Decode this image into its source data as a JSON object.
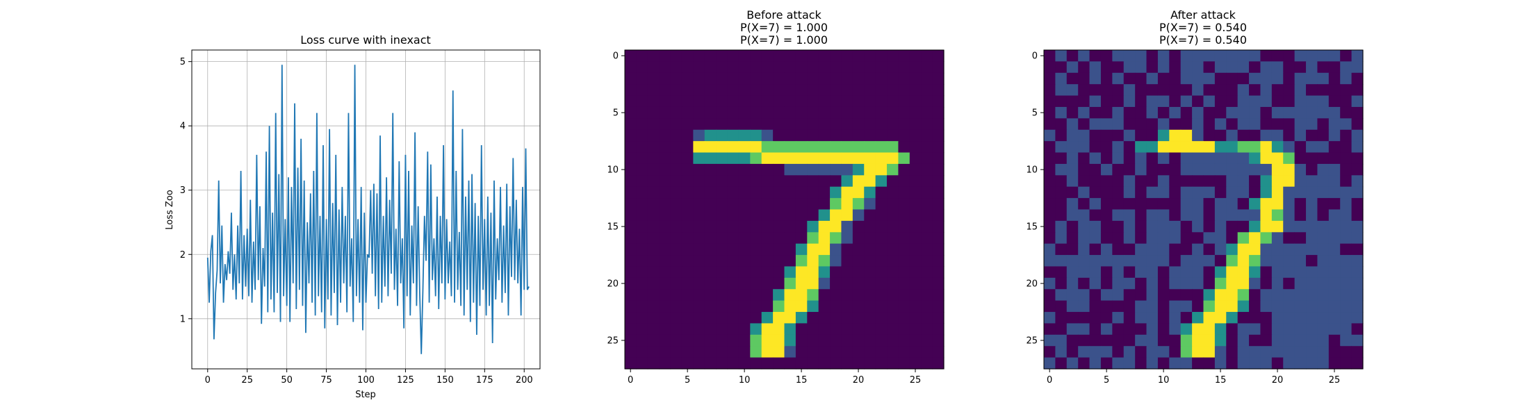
{
  "chart_data": [
    {
      "type": "line",
      "title": "Loss curve with inexact",
      "xlabel": "Step",
      "ylabel": "Loss Zoo",
      "xlim": [
        -10,
        210
      ],
      "ylim": [
        0.22,
        5.18
      ],
      "xticks": [
        0,
        25,
        50,
        75,
        100,
        125,
        150,
        175,
        200
      ],
      "yticks": [
        1,
        2,
        3,
        4,
        5
      ],
      "grid": true,
      "line_color": "#1f77b4",
      "series": [
        {
          "values": [
            1.95,
            1.25,
            2.05,
            2.3,
            0.68,
            1.4,
            1.75,
            3.15,
            1.55,
            2.45,
            1.25,
            1.85,
            1.6,
            2.05,
            1.7,
            2.65,
            1.45,
            2.0,
            1.3,
            2.45,
            1.55,
            3.3,
            1.3,
            2.3,
            1.5,
            2.4,
            1.35,
            2.85,
            1.25,
            2.2,
            1.45,
            3.55,
            1.6,
            2.75,
            0.92,
            2.1,
            1.5,
            3.6,
            1.1,
            4.0,
            1.3,
            2.65,
            1.1,
            4.2,
            1.4,
            3.25,
            0.95,
            4.95,
            1.35,
            2.55,
            1.2,
            3.2,
            0.95,
            3.05,
            1.55,
            4.35,
            1.15,
            3.35,
            1.45,
            3.8,
            1.2,
            3.15,
            0.78,
            2.5,
            1.55,
            2.95,
            1.25,
            3.3,
            1.05,
            4.2,
            1.35,
            2.6,
            1.1,
            3.7,
            0.85,
            2.55,
            1.3,
            3.95,
            1.05,
            2.8,
            1.4,
            3.55,
            0.9,
            2.7,
            1.25,
            3.05,
            1.55,
            2.6,
            1.1,
            4.2,
            1.5,
            2.25,
            0.95,
            4.95,
            1.35,
            2.55,
            1.25,
            3.05,
            0.82,
            2.65,
            1.25,
            2.0,
            1.95,
            3.0,
            1.7,
            3.1,
            1.35,
            2.95,
            1.15,
            3.85,
            1.25,
            2.6,
            1.5,
            3.2,
            1.35,
            2.85,
            1.7,
            4.2,
            1.45,
            2.4,
            1.2,
            3.45,
            1.55,
            2.25,
            0.85,
            3.55,
            1.35,
            3.3,
            1.05,
            2.45,
            1.55,
            3.9,
            1.2,
            2.75,
            1.4,
            0.45,
            1.45,
            2.6,
            1.9,
            3.6,
            1.25,
            3.4,
            1.6,
            2.25,
            1.35,
            2.9,
            1.15,
            2.6,
            1.55,
            3.7,
            1.3,
            2.55,
            1.55,
            2.2,
            1.35,
            4.55,
            1.25,
            3.3,
            1.45,
            2.35,
            1.2,
            3.95,
            1.05,
            2.9,
            1.45,
            3.15,
            0.95,
            3.25,
            1.25,
            2.8,
            0.75,
            2.6,
            1.2,
            3.7,
            1.45,
            2.55,
            1.05,
            2.9,
            1.2,
            2.65,
            0.62,
            3.15,
            1.3,
            2.25,
            1.6,
            3.05,
            1.25,
            2.45,
            1.4,
            3.1,
            1.05,
            2.75,
            1.65,
            3.5,
            1.6,
            2.85,
            1.55,
            2.4,
            1.05,
            3.05,
            1.45,
            3.65,
            1.45,
            1.5
          ]
        }
      ]
    },
    {
      "type": "heatmap",
      "title_lines": [
        "Before attack",
        "P(X=7) = 1.000",
        "P(X=7) = 1.000"
      ],
      "size": 28,
      "xticks": [
        0,
        5,
        10,
        15,
        20,
        25
      ],
      "yticks": [
        0,
        5,
        10,
        15,
        20,
        25
      ],
      "colormap": [
        "#440154",
        "#3b528b",
        "#21918c",
        "#5ec962",
        "#fde725"
      ],
      "values": [
        "............................",
        "............................",
        "............................",
        "............................",
        "............................",
        "............................",
        "............................",
        "......1222221...............",
        "......444444333333333333....",
        "......2222234444444444443...",
        "..............1111112443....",
        "...................2442.....",
        "..................2442......",
        "..................3431......",
        ".................2441.......",
        "................2441........",
        "................3431........",
        "...............2441.........",
        "...............3431.........",
        "..............2442..........",
        "..............3441..........",
        ".............2443...........",
        ".............3442...........",
        "............2442............",
        "...........2442.............",
        "...........3442.............",
        "...........3441.............",
        "............................"
      ]
    },
    {
      "type": "heatmap",
      "title_lines": [
        "After attack",
        "P(X=7) = 0.540",
        "P(X=7) = 0.540"
      ],
      "size": 28,
      "xticks": [
        0,
        5,
        10,
        15,
        20,
        25
      ],
      "yticks": [
        0,
        5,
        10,
        15,
        20,
        25
      ],
      "colormap": [
        "#440154",
        "#3b528b",
        "#21918c",
        "#5ec962",
        "#fde725"
      ],
      "values": [
        ".1.1..111.1.1111111...1111.1",
        "..1.1..11.1.11.111.11..1..11",
        ".1..1.1..1..111...111.111.1.",
        ".11....1.....1...1.1..1.....",
        "....1..1.11.1.1..111..111..1",
        ".1.1..1..1.1.1..111.111111..",
        "..1.111...1..1.1.11...11.11.",
        "1.11...1..2441..1..11.1..1.1",
        ".111..1.22444442233421.11..1",
        "..1.1.1.1.1.1111112443......",
        ".11..1..1...11111111441.11..",
        "..1....1..1.....11.2441111.1",
        "...1...1.11.111.11.241111111",
        "..1.1.......11.11.2441.1..1.",
        "..11..11.11.11.1111431.1.11.",
        ".1.11..1.111.1.1..2441111111",
        ".1.11..1.111..11.3431..11111",
        "1..1.1..111..1.12441111111..",
        "11111111111.111.3431111.1111",
        "..111.1.11.111.2442.11111111",
        "1.1.1.11.1.111.3441.1.111111",
        ".111.11..1....2443.111111111",
        "..11....11.11.3442.111111111",
        "1.....1.11.1.2442...11111111",
        "..11.1...1.12442.11.1111111.",
        "11......11..3442.1..11111.11",
        ".1.111.1.11.3441.11111111...",
        "1.1.1.11.1.11..1.111.1111..."
      ]
    }
  ]
}
